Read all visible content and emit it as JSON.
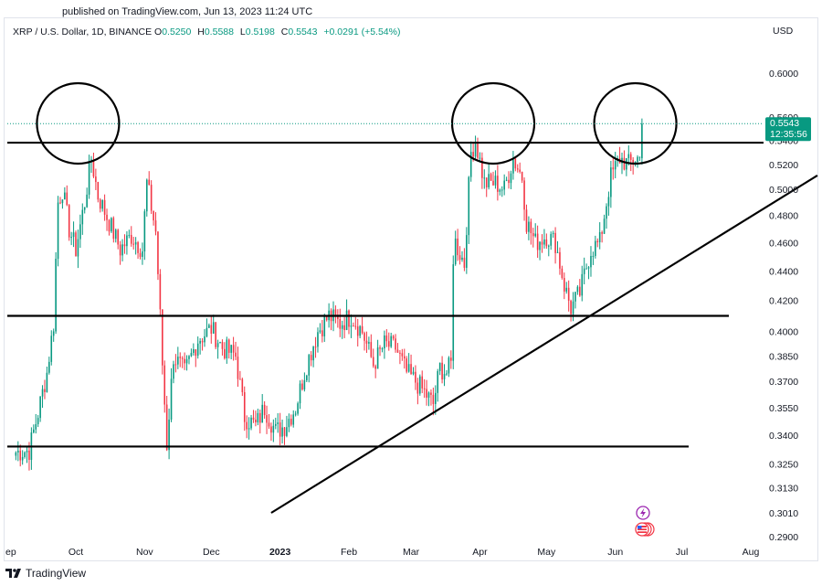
{
  "header": {
    "published": "published on TradingView.com, Jun 13, 2023 11:24 UTC"
  },
  "legend": {
    "symbol": "XRP / U.S. Dollar, 1D, BINANCE",
    "open_label": "O",
    "open": "0.5250",
    "high_label": "H",
    "high": "0.5588",
    "low_label": "L",
    "low": "0.5198",
    "close_label": "C",
    "close": "0.5543",
    "change": "+0.0291 (+5.54%)"
  },
  "price_axis": {
    "currency": "USD"
  },
  "price_badge": {
    "price": "0.5543",
    "countdown": "12:35:56",
    "color": "#089981"
  },
  "footer": {
    "brand": "TradingView"
  },
  "colors": {
    "up": "#089981",
    "down": "#f23645",
    "drawing": "#000000"
  },
  "icons": [
    "lightning-icon",
    "us-flag-event-icon"
  ],
  "chart_data": {
    "type": "candlestick",
    "x_axis": {
      "tick_labels": [
        "ep",
        "Oct",
        "Nov",
        "Dec",
        "2023",
        "Feb",
        "Mar",
        "Apr",
        "May",
        "Jun",
        "Jul",
        "Aug"
      ]
    },
    "y_axis": {
      "scale": "log",
      "tick_labels": [
        "0.6000",
        "0.5600",
        "0.5400",
        "0.5200",
        "0.5000",
        "0.4800",
        "0.4600",
        "0.4400",
        "0.4200",
        "0.4000",
        "0.3850",
        "0.3700",
        "0.3550",
        "0.3400",
        "0.3250",
        "0.3130",
        "0.3010",
        "0.2900"
      ],
      "range": [
        0.285,
        0.615
      ]
    },
    "series_anchors": [
      {
        "date": "2022-09-04",
        "close": 0.331
      },
      {
        "date": "2022-09-10",
        "close": 0.332
      },
      {
        "date": "2022-09-14",
        "close": 0.352
      },
      {
        "date": "2022-09-18",
        "close": 0.375
      },
      {
        "date": "2022-09-21",
        "close": 0.405
      },
      {
        "date": "2022-09-23",
        "close": 0.49
      },
      {
        "date": "2022-09-25",
        "close": 0.5
      },
      {
        "date": "2022-09-28",
        "close": 0.47
      },
      {
        "date": "2022-10-01",
        "close": 0.455
      },
      {
        "date": "2022-10-05",
        "close": 0.49
      },
      {
        "date": "2022-10-08",
        "close": 0.525
      },
      {
        "date": "2022-10-11",
        "close": 0.495
      },
      {
        "date": "2022-10-16",
        "close": 0.475
      },
      {
        "date": "2022-10-21",
        "close": 0.455
      },
      {
        "date": "2022-10-26",
        "close": 0.465
      },
      {
        "date": "2022-10-31",
        "close": 0.455
      },
      {
        "date": "2022-11-02",
        "close": 0.505
      },
      {
        "date": "2022-11-06",
        "close": 0.468
      },
      {
        "date": "2022-11-09",
        "close": 0.38
      },
      {
        "date": "2022-11-11",
        "close": 0.335
      },
      {
        "date": "2022-11-14",
        "close": 0.385
      },
      {
        "date": "2022-11-19",
        "close": 0.375
      },
      {
        "date": "2022-11-25",
        "close": 0.395
      },
      {
        "date": "2022-12-01",
        "close": 0.402
      },
      {
        "date": "2022-12-06",
        "close": 0.39
      },
      {
        "date": "2022-12-12",
        "close": 0.385
      },
      {
        "date": "2022-12-16",
        "close": 0.35
      },
      {
        "date": "2022-12-21",
        "close": 0.345
      },
      {
        "date": "2022-12-25",
        "close": 0.355
      },
      {
        "date": "2022-12-30",
        "close": 0.342
      },
      {
        "date": "2023-01-03",
        "close": 0.345
      },
      {
        "date": "2023-01-08",
        "close": 0.355
      },
      {
        "date": "2023-01-13",
        "close": 0.38
      },
      {
        "date": "2023-01-18",
        "close": 0.4
      },
      {
        "date": "2023-01-23",
        "close": 0.41
      },
      {
        "date": "2023-01-28",
        "close": 0.405
      },
      {
        "date": "2023-02-02",
        "close": 0.41
      },
      {
        "date": "2023-02-07",
        "close": 0.4
      },
      {
        "date": "2023-02-12",
        "close": 0.38
      },
      {
        "date": "2023-02-17",
        "close": 0.392
      },
      {
        "date": "2023-02-22",
        "close": 0.39
      },
      {
        "date": "2023-02-27",
        "close": 0.375
      },
      {
        "date": "2023-03-03",
        "close": 0.37
      },
      {
        "date": "2023-03-08",
        "close": 0.362
      },
      {
        "date": "2023-03-11",
        "close": 0.357
      },
      {
        "date": "2023-03-14",
        "close": 0.378
      },
      {
        "date": "2023-03-17",
        "close": 0.375
      },
      {
        "date": "2023-03-19",
        "close": 0.38
      },
      {
        "date": "2023-03-20",
        "close": 0.45
      },
      {
        "date": "2023-03-21",
        "close": 0.46
      },
      {
        "date": "2023-03-25",
        "close": 0.445
      },
      {
        "date": "2023-03-28",
        "close": 0.53
      },
      {
        "date": "2023-03-30",
        "close": 0.54
      },
      {
        "date": "2023-04-03",
        "close": 0.505
      },
      {
        "date": "2023-04-08",
        "close": 0.505
      },
      {
        "date": "2023-04-12",
        "close": 0.5
      },
      {
        "date": "2023-04-16",
        "close": 0.525
      },
      {
        "date": "2023-04-20",
        "close": 0.51
      },
      {
        "date": "2023-04-22",
        "close": 0.475
      },
      {
        "date": "2023-04-26",
        "close": 0.46
      },
      {
        "date": "2023-05-01",
        "close": 0.465
      },
      {
        "date": "2023-05-05",
        "close": 0.46
      },
      {
        "date": "2023-05-09",
        "close": 0.43
      },
      {
        "date": "2023-05-12",
        "close": 0.415
      },
      {
        "date": "2023-05-16",
        "close": 0.425
      },
      {
        "date": "2023-05-21",
        "close": 0.455
      },
      {
        "date": "2023-05-25",
        "close": 0.46
      },
      {
        "date": "2023-05-30",
        "close": 0.51
      },
      {
        "date": "2023-06-03",
        "close": 0.525
      },
      {
        "date": "2023-06-07",
        "close": 0.52
      },
      {
        "date": "2023-06-10",
        "close": 0.525
      },
      {
        "date": "2023-06-12",
        "close": 0.525
      },
      {
        "date": "2023-06-13",
        "close": 0.5543
      }
    ],
    "annotations": {
      "horizontal_lines": [
        0.538,
        0.41,
        0.334
      ],
      "trendline": [
        {
          "date": "2022-12-28",
          "price": 0.301
        },
        {
          "date": "2023-08-31",
          "price": 0.511
        }
      ],
      "circles": [
        "2022-10-02",
        "2023-04-07",
        "2023-06-10"
      ]
    }
  }
}
